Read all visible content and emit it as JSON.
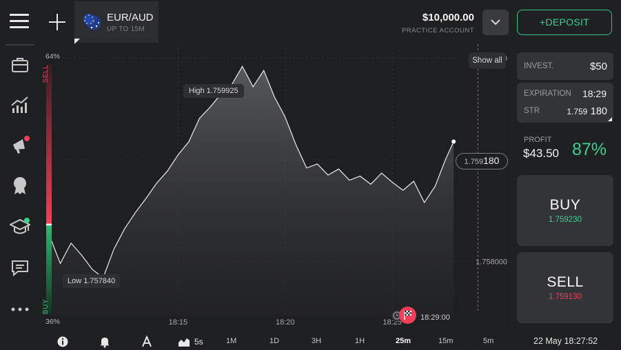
{
  "header": {
    "asset_name": "EUR/AUD",
    "asset_sub": "UP TO 15M",
    "balance": "$10,000.00",
    "account_type": "PRACTICE ACCOUNT",
    "deposit_label": "+DEPOSIT"
  },
  "sidebar": {
    "items": [
      {
        "icon": "briefcase-icon",
        "label": ""
      },
      {
        "icon": "chart-trend-icon",
        "label": ""
      },
      {
        "icon": "megaphone-icon",
        "label": "",
        "badge_color": "#f23f59"
      },
      {
        "icon": "medal-icon",
        "label": ""
      },
      {
        "icon": "graduation-cap-icon",
        "label": "",
        "badge_color": "#3fcf8e"
      },
      {
        "icon": "chat-icon",
        "label": ""
      },
      {
        "icon": "more-icon",
        "label": ""
      }
    ]
  },
  "chart": {
    "show_all": "Show all",
    "high_label": "High 1.759925",
    "low_label": "Low 1.757840",
    "current_price_small": "1.759",
    "current_price_large": "180",
    "sentiment_top": "64%",
    "sentiment_bottom": "36%",
    "sentiment_sell": "SELL",
    "sentiment_buy": "BUY",
    "expiration_marker_time": "18:29:00"
  },
  "chart_data": {
    "type": "area",
    "x_ticks": [
      "18:15",
      "18:20",
      "18:25"
    ],
    "y_ticks": [
      "1.760000",
      "1.759000",
      "1.758000"
    ],
    "high": 1.759925,
    "low": 1.75784,
    "current": 1.75918,
    "x": [
      "18:09:00",
      "18:09:30",
      "18:10:00",
      "18:10:30",
      "18:11:00",
      "18:11:30",
      "18:12:00",
      "18:12:30",
      "18:13:00",
      "18:13:30",
      "18:14:00",
      "18:14:30",
      "18:15:00",
      "18:15:30",
      "18:16:00",
      "18:16:30",
      "18:17:00",
      "18:17:30",
      "18:18:00",
      "18:18:30",
      "18:19:00",
      "18:19:30",
      "18:20:00",
      "18:20:30",
      "18:21:00",
      "18:21:30",
      "18:22:00",
      "18:22:30",
      "18:23:00",
      "18:23:30",
      "18:24:00",
      "18:24:30",
      "18:25:00",
      "18:25:30",
      "18:26:00",
      "18:26:30",
      "18:27:00",
      "18:27:30",
      "18:27:52"
    ],
    "y": [
      1.75825,
      1.75798,
      1.75818,
      1.75806,
      1.75792,
      1.75784,
      1.75812,
      1.75832,
      1.75848,
      1.75862,
      1.75877,
      1.75889,
      1.75905,
      1.75918,
      1.75941,
      1.75952,
      1.75965,
      1.75974,
      1.75992,
      1.75972,
      1.75988,
      1.75962,
      1.75942,
      1.75915,
      1.75892,
      1.75896,
      1.75885,
      1.75891,
      1.7588,
      1.75884,
      1.75876,
      1.75887,
      1.75878,
      1.7587,
      1.75879,
      1.75858,
      1.75874,
      1.75901,
      1.75918
    ],
    "x_range": [
      "18:09:00",
      "18:30:30"
    ],
    "y_range": [
      1.75746,
      1.76014
    ],
    "grid": true,
    "legend": "none"
  },
  "trade": {
    "invest_label": "INVEST.",
    "invest_value": "$50",
    "expiration_label": "EXPIRATION",
    "expiration_value": "18:29",
    "strike_label": "STR",
    "strike_small": "1.759",
    "strike_large": "180",
    "profit_label": "PROFIT",
    "profit_value": "$43.50",
    "profit_pct": "87%",
    "buy_label": "BUY",
    "buy_price": "1.759230",
    "sell_label": "SELL",
    "sell_price": "1.759130",
    "buy_color": "#3fcf8e",
    "sell_color": "#f23f59"
  },
  "bottombar": {
    "chart_type_label": "5s",
    "timeframes": [
      "1M",
      "1D",
      "3H",
      "1H",
      "25m",
      "15m",
      "5m"
    ],
    "selected_timeframe": "25m",
    "clock": "22 May 18:27:52"
  }
}
